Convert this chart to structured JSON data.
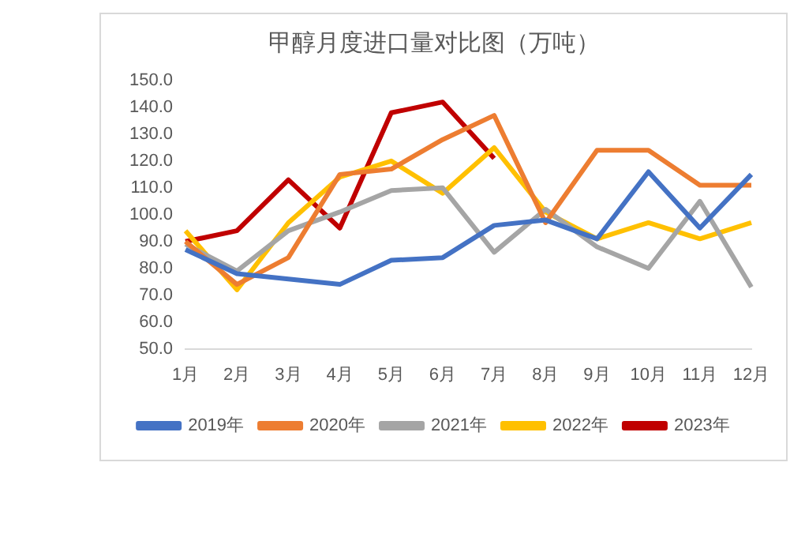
{
  "chart_data": {
    "type": "line",
    "title": "甲醇月度进口量对比图（万吨）",
    "categories": [
      "1月",
      "2月",
      "3月",
      "4月",
      "5月",
      "6月",
      "7月",
      "8月",
      "9月",
      "10月",
      "11月",
      "12月"
    ],
    "series": [
      {
        "name": "2019年",
        "color": "#4472c4",
        "values": [
          87,
          78,
          76,
          74,
          83,
          84,
          96,
          98,
          91,
          116,
          95,
          115
        ]
      },
      {
        "name": "2020年",
        "color": "#ed7d31",
        "values": [
          90,
          74,
          84,
          115,
          117,
          128,
          137,
          97,
          124,
          124,
          111,
          111
        ]
      },
      {
        "name": "2021年",
        "color": "#a5a5a5",
        "values": [
          89,
          79,
          94,
          101,
          109,
          110,
          86,
          102,
          88,
          80,
          105,
          73
        ]
      },
      {
        "name": "2022年",
        "color": "#ffc000",
        "values": [
          94,
          72,
          97,
          114,
          120,
          108,
          125,
          101,
          91,
          97,
          91,
          97
        ]
      },
      {
        "name": "2023年",
        "color": "#c00000",
        "values": [
          90,
          94,
          113,
          95,
          138,
          142,
          121,
          null,
          null,
          null,
          null,
          null
        ]
      }
    ],
    "ylim": [
      50,
      150
    ],
    "yticks": [
      {
        "value": 50,
        "label": "50.0"
      },
      {
        "value": 60,
        "label": "60.0"
      },
      {
        "value": 70,
        "label": "70.0"
      },
      {
        "value": 80,
        "label": "80.0"
      },
      {
        "value": 90,
        "label": "90.0"
      },
      {
        "value": 100,
        "label": "100.0"
      },
      {
        "value": 110,
        "label": "110.0"
      },
      {
        "value": 120,
        "label": "120.0"
      },
      {
        "value": 130,
        "label": "130.0"
      },
      {
        "value": 140,
        "label": "140.0"
      },
      {
        "value": 150,
        "label": "150.0"
      }
    ],
    "grid": false,
    "legend": "bottom",
    "marker": "none",
    "line_style": "solid"
  }
}
